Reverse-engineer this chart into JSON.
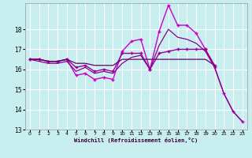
{
  "xlabel": "Windchill (Refroidissement éolien,°C)",
  "background_color": "#c8eef0",
  "grid_color": "#ffffff",
  "ylim": [
    13,
    19.3
  ],
  "xlim": [
    -0.5,
    23.5
  ],
  "yticks": [
    13,
    14,
    15,
    16,
    17,
    18
  ],
  "xticks": [
    0,
    1,
    2,
    3,
    4,
    5,
    6,
    7,
    8,
    9,
    10,
    11,
    12,
    13,
    14,
    15,
    16,
    17,
    18,
    19,
    20,
    21,
    22,
    23
  ],
  "series": [
    {
      "x": [
        0,
        1,
        2,
        3,
        4,
        5,
        6,
        7,
        8,
        9,
        10,
        11,
        12,
        13,
        14,
        15,
        16,
        17,
        18,
        19,
        20,
        21,
        22,
        23
      ],
      "y": [
        16.5,
        16.5,
        16.4,
        16.4,
        16.5,
        15.7,
        15.8,
        15.5,
        15.6,
        15.5,
        16.9,
        17.4,
        17.5,
        16.0,
        17.9,
        19.2,
        18.2,
        18.2,
        17.8,
        17.0,
        16.1,
        14.8,
        13.9,
        13.4
      ],
      "color": "#cc00cc",
      "lw": 1.0,
      "marker": "+"
    },
    {
      "x": [
        0,
        1,
        2,
        3,
        4,
        5,
        6,
        7,
        8,
        9,
        10,
        11,
        12,
        13,
        14,
        15,
        16,
        17,
        18,
        19,
        20
      ],
      "y": [
        16.5,
        16.5,
        16.4,
        16.4,
        16.5,
        16.1,
        16.2,
        15.9,
        16.0,
        15.9,
        16.8,
        16.8,
        16.8,
        16.0,
        16.8,
        16.9,
        17.0,
        17.0,
        17.0,
        17.0,
        16.2
      ],
      "color": "#990099",
      "lw": 1.0,
      "marker": "+"
    },
    {
      "x": [
        0,
        1,
        2,
        3,
        4,
        5,
        6,
        7,
        8,
        9,
        10,
        11,
        12,
        13,
        14,
        15,
        16,
        17,
        18,
        19,
        20
      ],
      "y": [
        16.5,
        16.5,
        16.4,
        16.4,
        16.5,
        16.3,
        16.3,
        16.2,
        16.2,
        16.2,
        16.5,
        16.5,
        16.5,
        16.5,
        16.5,
        16.5,
        16.5,
        16.5,
        16.5,
        16.5,
        16.2
      ],
      "color": "#660066",
      "lw": 0.9,
      "marker": null
    },
    {
      "x": [
        0,
        1,
        2,
        3,
        4,
        5,
        6,
        7,
        8,
        9,
        10,
        11,
        12,
        13,
        14,
        15,
        16,
        17,
        18,
        19,
        20,
        21,
        22,
        23
      ],
      "y": [
        16.5,
        16.4,
        16.3,
        16.3,
        16.4,
        15.9,
        16.1,
        15.8,
        15.9,
        15.8,
        16.3,
        16.6,
        16.7,
        16.0,
        17.2,
        18.0,
        17.6,
        17.5,
        17.3,
        16.9,
        16.1,
        14.8,
        13.9,
        13.4
      ],
      "color": "#880088",
      "lw": 0.9,
      "marker": null
    }
  ]
}
